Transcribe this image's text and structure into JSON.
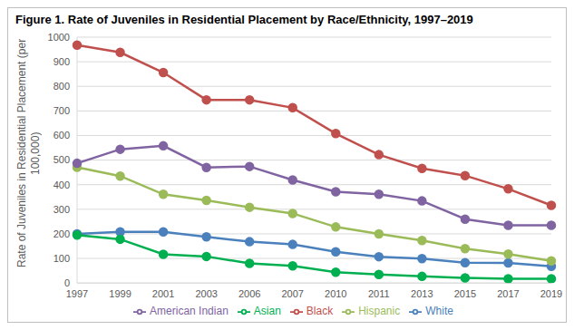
{
  "chart_data": {
    "type": "line",
    "title": "Figure 1. Rate of Juveniles in Residential Placement by Race/Ethnicity, 1997–2019",
    "y_label": "Rate of Juveniles in Residential Placement (per 100,000)",
    "categories": [
      "1997",
      "1999",
      "2001",
      "2003",
      "2006",
      "2007",
      "2010",
      "2011",
      "2013",
      "2015",
      "2017",
      "2019"
    ],
    "series": [
      {
        "name": "White",
        "color": "#4a81bd",
        "values": [
          200,
          208,
          208,
          188,
          168,
          157,
          127,
          107,
          99,
          83,
          82,
          68
        ]
      },
      {
        "name": "Black",
        "color": "#c0504d",
        "values": [
          968,
          938,
          856,
          745,
          745,
          713,
          608,
          522,
          466,
          437,
          383,
          316
        ]
      },
      {
        "name": "Hispanic",
        "color": "#9bbb59",
        "values": [
          471,
          435,
          361,
          336,
          308,
          283,
          228,
          200,
          173,
          140,
          118,
          90
        ]
      },
      {
        "name": "American Indian",
        "color": "#8064a2",
        "values": [
          487,
          544,
          558,
          470,
          474,
          419,
          371,
          361,
          334,
          260,
          235,
          235
        ]
      },
      {
        "name": "Asian",
        "color": "#00b050",
        "values": [
          195,
          178,
          117,
          108,
          80,
          70,
          44,
          35,
          27,
          21,
          17,
          17
        ]
      }
    ],
    "ylim": [
      0,
      1000
    ],
    "yticks": [
      0,
      100,
      200,
      300,
      400,
      500,
      600,
      700,
      800,
      900,
      1000
    ],
    "grid": true,
    "legend": "bottom",
    "marker": "circle"
  }
}
